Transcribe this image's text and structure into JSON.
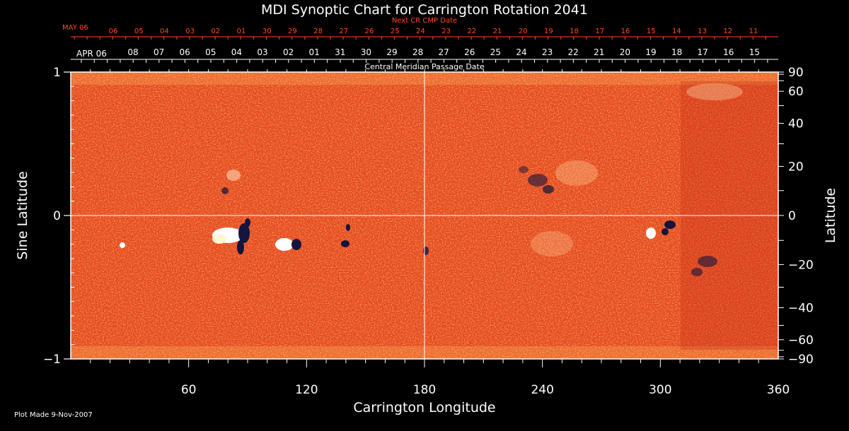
{
  "chart_data": {
    "type": "heatmap",
    "title": "MDI Synoptic Chart for Carrington Rotation 2041",
    "xlabel": "Carrington Longitude",
    "ylabel_left": "Sine Latitude",
    "ylabel_right": "Latitude",
    "xlim": [
      0,
      360
    ],
    "ylim": [
      -1,
      1
    ],
    "x_ticks": [
      "60",
      "120",
      "180",
      "240",
      "300",
      "360"
    ],
    "x_tick_values": [
      60,
      120,
      180,
      240,
      300,
      360
    ],
    "y_left_ticks": [
      "1",
      "0",
      "−1"
    ],
    "y_left_tick_values": [
      1,
      0,
      -1
    ],
    "y_right_ticks": [
      "90",
      "60",
      "40",
      "20",
      "0",
      "−20",
      "−40",
      "−60",
      "−90"
    ],
    "y_right_tick_values": [
      90,
      60,
      40,
      20,
      0,
      -20,
      -40,
      -60,
      -90
    ],
    "grid_lines": {
      "longitude": 180,
      "sine_latitude": 0
    },
    "top_axis": {
      "next_label": "Next CR CMP Date",
      "next_start": "MAY 06",
      "next_days": [
        "06",
        "05",
        "04",
        "03",
        "02",
        "01",
        "30",
        "29",
        "28",
        "27",
        "26",
        "25",
        "24",
        "23",
        "22",
        "21",
        "20",
        "19",
        "18",
        "17",
        "16",
        "15",
        "14",
        "13",
        "12",
        "11"
      ],
      "cmp_label": "Central Meridian Passage Date",
      "cmp_start": "APR 06",
      "cmp_days": [
        "08",
        "07",
        "06",
        "05",
        "04",
        "03",
        "02",
        "01",
        "31",
        "30",
        "29",
        "28",
        "27",
        "26",
        "25",
        "24",
        "23",
        "22",
        "21",
        "20",
        "19",
        "18",
        "17",
        "16",
        "15"
      ]
    },
    "colors": {
      "background_field": "#e8481a",
      "positive_polarity": "#ffffff",
      "negative_polarity": "#1a1a4a",
      "top_axis_label": "#ff4a24",
      "frame": "#ffffff"
    },
    "footer": "Plot Made  9-Nov-2007"
  }
}
